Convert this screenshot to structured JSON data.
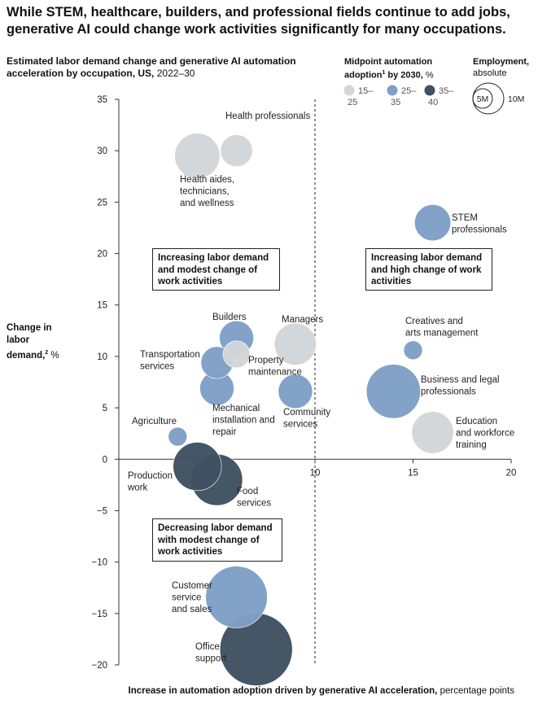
{
  "headline": "While STEM, healthcare, builders, and professional fields continue to add jobs, generative AI could change work activities significantly for many occupations.",
  "subtitle": {
    "bold": "Estimated labor demand change and generative AI automation acceleration by occupation, US,",
    "regular": " 2022–30"
  },
  "legend_color": {
    "title_bold": "Midpoint automation adoption",
    "title_sup": "1",
    "title_bold2": " by 2030,",
    "title_unit": " %",
    "items": [
      {
        "label_top": "15–",
        "label_bottom": "25",
        "color": "#d3d6d9"
      },
      {
        "label_top": "25–",
        "label_bottom": "35",
        "color": "#7f9fc6"
      },
      {
        "label_top": "35–",
        "label_bottom": "40",
        "color": "#3f5162"
      }
    ]
  },
  "legend_size": {
    "title_bold": "Employment,",
    "title_regular": "absolute",
    "small_label": "5M",
    "large_label": "10M"
  },
  "quadrants": {
    "top_left": "Increasing labor demand and modest change of work activities",
    "top_right": "Increasing labor demand and high change of work activities",
    "bottom_left": "Decreasing labor demand with modest change of work activities"
  },
  "y_axis": {
    "label_bold": "Change in labor demand,",
    "label_sup": "2",
    "label_unit": " %"
  },
  "x_axis": {
    "label_bold": "Increase in automation adoption driven by generative AI acceleration,",
    "label_unit": " percentage points"
  },
  "chart_data": {
    "type": "scatter",
    "title": "Estimated labor demand change and generative AI automation acceleration by occupation, US, 2022–30",
    "xlabel": "Increase in automation adoption driven by generative AI acceleration, percentage points",
    "ylabel": "Change in labor demand, %",
    "xlim": [
      0,
      20
    ],
    "ylim": [
      -20,
      35
    ],
    "x_ticks": [
      5,
      10,
      15,
      20
    ],
    "y_ticks": [
      35,
      30,
      25,
      20,
      15,
      10,
      5,
      0,
      -5,
      -10,
      -15,
      -20
    ],
    "reference_line_x": 10,
    "size_meaning": "Employment, absolute",
    "color_meaning": "Midpoint automation adoption by 2030, %",
    "points": [
      {
        "label": "Health professionals",
        "x": 6.0,
        "y": 30.0,
        "adoption_band": "15–25",
        "employment_m": 3.5
      },
      {
        "label": "Health aides, technicians, and wellness",
        "x": 4.0,
        "y": 29.5,
        "adoption_band": "15–25",
        "employment_m": 7.0
      },
      {
        "label": "STEM professionals",
        "x": 16.0,
        "y": 23.0,
        "adoption_band": "25–35",
        "employment_m": 4.5
      },
      {
        "label": "Builders",
        "x": 6.0,
        "y": 11.8,
        "adoption_band": "25–35",
        "employment_m": 4.0
      },
      {
        "label": "Property maintenance",
        "x": 6.0,
        "y": 10.2,
        "adoption_band": "15–25",
        "employment_m": 2.5
      },
      {
        "label": "Managers",
        "x": 9.0,
        "y": 11.2,
        "adoption_band": "15–25",
        "employment_m": 6.0
      },
      {
        "label": "Transportation services",
        "x": 5.0,
        "y": 9.4,
        "adoption_band": "25–35",
        "employment_m": 3.5
      },
      {
        "label": "Mechanical installation and repair",
        "x": 5.0,
        "y": 6.9,
        "adoption_band": "25–35",
        "employment_m": 4.0
      },
      {
        "label": "Community services",
        "x": 9.0,
        "y": 6.6,
        "adoption_band": "25–35",
        "employment_m": 4.0
      },
      {
        "label": "Creatives and arts management",
        "x": 15.0,
        "y": 10.6,
        "adoption_band": "25–35",
        "employment_m": 1.2
      },
      {
        "label": "Business and legal professionals",
        "x": 14.0,
        "y": 6.6,
        "adoption_band": "25–35",
        "employment_m": 10.0
      },
      {
        "label": "Education and workforce training",
        "x": 16.0,
        "y": 2.6,
        "adoption_band": "15–25",
        "employment_m": 6.0
      },
      {
        "label": "Agriculture",
        "x": 3.0,
        "y": 2.2,
        "adoption_band": "25–35",
        "employment_m": 1.2
      },
      {
        "label": "Production work",
        "x": 4.0,
        "y": -0.7,
        "adoption_band": "35–40",
        "employment_m": 8.0
      },
      {
        "label": "Food services",
        "x": 5.0,
        "y": -2.0,
        "adoption_band": "35–40",
        "employment_m": 9.0
      },
      {
        "label": "Customer service and sales",
        "x": 6.0,
        "y": -13.4,
        "adoption_band": "25–35",
        "employment_m": 13.0
      },
      {
        "label": "Office support",
        "x": 7.0,
        "y": -18.5,
        "adoption_band": "35–40",
        "employment_m": 18.0
      }
    ]
  }
}
